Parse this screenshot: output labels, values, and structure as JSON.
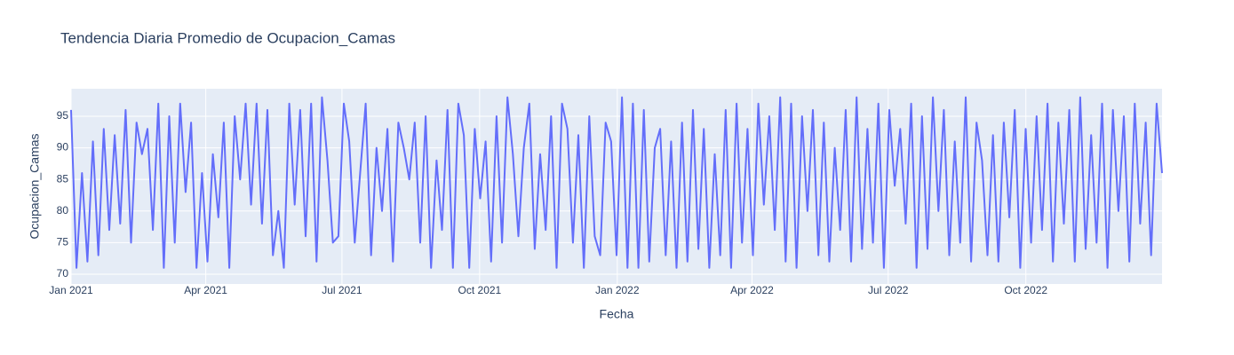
{
  "chart_data": {
    "type": "line",
    "title": "Tendencia Diaria Promedio de Ocupacion_Camas",
    "x_label": "Fecha",
    "y_label": "Ocupacion_Camas",
    "xlim": [
      0,
      729
    ],
    "xticks": [
      {
        "value": 0,
        "label": "Jan 2021"
      },
      {
        "value": 90,
        "label": "Apr 2021"
      },
      {
        "value": 181,
        "label": "Jul 2021"
      },
      {
        "value": 273,
        "label": "Oct 2021"
      },
      {
        "value": 365,
        "label": "Jan 2022"
      },
      {
        "value": 455,
        "label": "Apr 2022"
      },
      {
        "value": 546,
        "label": "Jul 2022"
      },
      {
        "value": 638,
        "label": "Oct 2022"
      }
    ],
    "ylim": [
      68.45,
      99.35
    ],
    "yticks": [
      70,
      75,
      80,
      85,
      90,
      95
    ],
    "grid": true,
    "series": [
      {
        "name": "Ocupacion_Camas",
        "color": "#636efa",
        "values": [
          96,
          71,
          86,
          72,
          91,
          73,
          93,
          77,
          92,
          78,
          96,
          75,
          94,
          89,
          93,
          77,
          97,
          71,
          95,
          75,
          97,
          83,
          94,
          71,
          86,
          72,
          89,
          79,
          94,
          71,
          95,
          85,
          97,
          81,
          97,
          78,
          96,
          73,
          80,
          71,
          97,
          81,
          96,
          76,
          97,
          72,
          98,
          88,
          75,
          76,
          97,
          91,
          75,
          86,
          97,
          73,
          90,
          80,
          93,
          72,
          94,
          90,
          85,
          94,
          75,
          95,
          71,
          88,
          77,
          96,
          71,
          97,
          92,
          71,
          93,
          82,
          91,
          72,
          95,
          75,
          98,
          89,
          76,
          90,
          97,
          74,
          89,
          77,
          95,
          71,
          97,
          93,
          75,
          92,
          71,
          95,
          76,
          73,
          94,
          91,
          73,
          98,
          71,
          97,
          71,
          96,
          72,
          90,
          93,
          73,
          91,
          71,
          94,
          72,
          96,
          74,
          93,
          71,
          89,
          73,
          96,
          71,
          97,
          75,
          93,
          73,
          97,
          81,
          95,
          77,
          98,
          72,
          97,
          71,
          95,
          80,
          96,
          73,
          94,
          72,
          90,
          77,
          96,
          72,
          98,
          74,
          93,
          75,
          97,
          71,
          96,
          84,
          93,
          78,
          97,
          71,
          95,
          74,
          98,
          80,
          96,
          73,
          91,
          75,
          98,
          72,
          94,
          88,
          73,
          92,
          72,
          94,
          79,
          96,
          71,
          93,
          75,
          95,
          77,
          97,
          72,
          94,
          78,
          96,
          72,
          98,
          74,
          92,
          75,
          97,
          71,
          96,
          80,
          95,
          72,
          97,
          78,
          94,
          73,
          97,
          86
        ]
      }
    ]
  }
}
